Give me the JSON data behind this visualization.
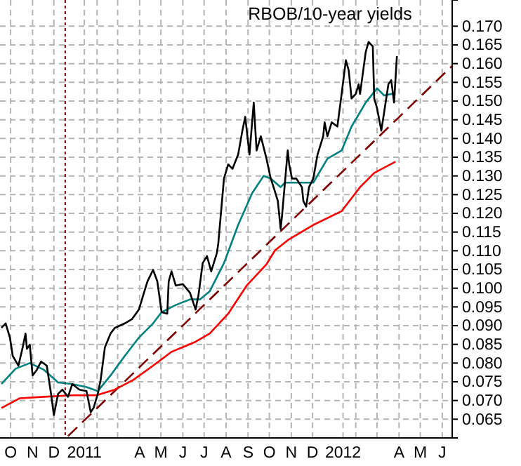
{
  "chart_data": {
    "type": "line",
    "title": "RBOB/10-year yields",
    "xlim": [
      "2010-10-01",
      "2012-06-30"
    ],
    "ylim": [
      0.06,
      0.177
    ],
    "xticks": [
      {
        "value": "2010-10-16",
        "label": "O"
      },
      {
        "value": "2010-11-16",
        "label": "N"
      },
      {
        "value": "2010-12-16",
        "label": "D"
      },
      {
        "value": "2011-01-28",
        "label": "2011"
      },
      {
        "value": "2011-02-15",
        "label": null
      },
      {
        "value": "2011-03-16",
        "label": null
      },
      {
        "value": "2011-04-16",
        "label": "A"
      },
      {
        "value": "2011-05-16",
        "label": "M"
      },
      {
        "value": "2011-06-16",
        "label": "J"
      },
      {
        "value": "2011-07-16",
        "label": "J"
      },
      {
        "value": "2011-08-16",
        "label": "A"
      },
      {
        "value": "2011-09-16",
        "label": "S"
      },
      {
        "value": "2011-10-16",
        "label": "O"
      },
      {
        "value": "2011-11-16",
        "label": "N"
      },
      {
        "value": "2011-12-16",
        "label": "D"
      },
      {
        "value": "2012-01-28",
        "label": "2012"
      },
      {
        "value": "2012-02-15",
        "label": null
      },
      {
        "value": "2012-03-16",
        "label": null
      },
      {
        "value": "2012-04-16",
        "label": "A"
      },
      {
        "value": "2012-05-16",
        "label": "M"
      },
      {
        "value": "2012-06-16",
        "label": "J"
      }
    ],
    "yticks": [
      0.065,
      {
        "value": 0.07,
        "label": "0.070"
      },
      0.075,
      {
        "value": 0.08,
        "label": "0.080"
      },
      0.085,
      {
        "value": 0.09,
        "label": "0.090"
      },
      0.095,
      {
        "value": 0.1,
        "label": "0.100"
      },
      0.105,
      {
        "value": 0.11,
        "label": "0.110"
      },
      0.115,
      {
        "value": 0.12,
        "label": "0.120"
      },
      0.125,
      {
        "value": 0.13,
        "label": "0.130"
      },
      0.135,
      {
        "value": 0.14,
        "label": "0.140"
      },
      0.145,
      {
        "value": 0.15,
        "label": "0.150"
      },
      0.155,
      {
        "value": 0.16,
        "label": "0.160"
      },
      0.165,
      {
        "value": 0.17,
        "label": "0.170"
      }
    ],
    "grid": true,
    "marker": "none",
    "ref_lines": [
      {
        "axis": "x",
        "value": "2011-01-01",
        "label": null,
        "color": "#800000",
        "line_style": "dotted"
      }
    ],
    "series": [
      {
        "color": "#800000",
        "line_style": "dashed",
        "x": [
          "2011-01-05",
          "2012-06-30"
        ],
        "values": [
          0.0605,
          0.1594
        ]
      },
      {
        "color": "#ff0000",
        "x": [
          "2010-10-03",
          "2010-10-29",
          "2010-12-02",
          "2011-01-11",
          "2011-02-14",
          "2011-03-12",
          "2011-04-07",
          "2011-05-05",
          "2011-05-31",
          "2011-07-04",
          "2011-07-24",
          "2011-08-19",
          "2011-09-14",
          "2011-10-12",
          "2011-10-24",
          "2011-11-13",
          "2011-12-17",
          "2012-01-26",
          "2012-02-21",
          "2012-03-12",
          "2012-04-11"
        ],
        "values": [
          0.068,
          0.0706,
          0.071,
          0.0714,
          0.0714,
          0.0729,
          0.0755,
          0.0793,
          0.083,
          0.0857,
          0.0879,
          0.0932,
          0.1007,
          0.1064,
          0.1101,
          0.1131,
          0.1169,
          0.1206,
          0.127,
          0.1308,
          0.1338
        ]
      },
      {
        "color": "#008080",
        "x": [
          "2010-10-03",
          "2010-10-23",
          "2010-11-12",
          "2010-12-02",
          "2010-12-22",
          "2011-01-11",
          "2011-01-31",
          "2011-02-16",
          "2011-03-06",
          "2011-03-26",
          "2011-04-15",
          "2011-05-05",
          "2011-05-17",
          "2011-06-06",
          "2011-06-26",
          "2011-07-10",
          "2011-07-24",
          "2011-08-13",
          "2011-09-02",
          "2011-09-22",
          "2011-10-08",
          "2011-10-18",
          "2011-11-01",
          "2011-11-07",
          "2011-11-21",
          "2011-12-17",
          "2012-01-06",
          "2012-01-26",
          "2012-02-09",
          "2012-02-29",
          "2012-03-16",
          "2012-03-26",
          "2012-04-05",
          "2012-04-11"
        ],
        "values": [
          0.0744,
          0.0785,
          0.08,
          0.0782,
          0.0748,
          0.0744,
          0.0736,
          0.0725,
          0.0767,
          0.0819,
          0.0868,
          0.0906,
          0.0936,
          0.0955,
          0.097,
          0.097,
          0.0992,
          0.1067,
          0.1169,
          0.1255,
          0.13,
          0.1293,
          0.127,
          0.1282,
          0.1282,
          0.1282,
          0.1346,
          0.1368,
          0.1432,
          0.1496,
          0.1534,
          0.1515,
          0.1519,
          0.1519
        ]
      },
      {
        "color": "#000000",
        "x": [
          "2010-10-03",
          "2010-10-09",
          "2010-10-15",
          "2010-10-19",
          "2010-10-27",
          "2010-11-02",
          "2010-11-06",
          "2010-11-08",
          "2010-11-12",
          "2010-11-16",
          "2010-11-22",
          "2010-11-28",
          "2010-12-06",
          "2010-12-12",
          "2010-12-16",
          "2010-12-22",
          "2010-12-28",
          "2011-01-05",
          "2011-01-11",
          "2011-01-21",
          "2011-01-31",
          "2011-02-06",
          "2011-02-10",
          "2011-02-16",
          "2011-02-20",
          "2011-02-26",
          "2011-03-06",
          "2011-03-12",
          "2011-03-26",
          "2011-04-05",
          "2011-04-15",
          "2011-04-21",
          "2011-04-27",
          "2011-05-05",
          "2011-05-11",
          "2011-05-17",
          "2011-05-25",
          "2011-05-27",
          "2011-05-31",
          "2011-06-06",
          "2011-06-16",
          "2011-06-26",
          "2011-07-04",
          "2011-07-08",
          "2011-07-14",
          "2011-07-20",
          "2011-07-26",
          "2011-08-03",
          "2011-08-05",
          "2011-08-13",
          "2011-08-19",
          "2011-08-25",
          "2011-09-02",
          "2011-09-08",
          "2011-09-12",
          "2011-09-18",
          "2011-09-24",
          "2011-09-28",
          "2011-10-04",
          "2011-10-12",
          "2011-10-18",
          "2011-10-22",
          "2011-10-28",
          "2011-11-01",
          "2011-11-03",
          "2011-11-07",
          "2011-11-11",
          "2011-11-13",
          "2011-11-17",
          "2011-11-23",
          "2011-12-01",
          "2011-12-03",
          "2011-12-07",
          "2011-12-11",
          "2011-12-17",
          "2011-12-23",
          "2011-12-31",
          "2012-01-02",
          "2012-01-06",
          "2012-01-12",
          "2012-01-20",
          "2012-01-26",
          "2012-02-01",
          "2012-02-05",
          "2012-02-09",
          "2012-02-15",
          "2012-02-19",
          "2012-02-21",
          "2012-02-29",
          "2012-03-04",
          "2012-03-10",
          "2012-03-12",
          "2012-03-16",
          "2012-03-22",
          "2012-03-26",
          "2012-04-01",
          "2012-04-05",
          "2012-04-09",
          "2012-04-13"
        ],
        "values": [
          0.0894,
          0.0906,
          0.0868,
          0.0819,
          0.0793,
          0.0842,
          0.0879,
          0.0838,
          0.0849,
          0.0767,
          0.0782,
          0.0804,
          0.0793,
          0.0718,
          0.0661,
          0.0718,
          0.0729,
          0.071,
          0.0744,
          0.0729,
          0.0725,
          0.0669,
          0.068,
          0.0718,
          0.0755,
          0.0842,
          0.0879,
          0.0894,
          0.0906,
          0.0917,
          0.0943,
          0.0981,
          0.1018,
          0.1049,
          0.1018,
          0.0936,
          0.0932,
          0.1018,
          0.1045,
          0.1007,
          0.1011,
          0.0988,
          0.0943,
          0.0981,
          0.1067,
          0.1086,
          0.1045,
          0.1094,
          0.112,
          0.1293,
          0.1331,
          0.1319,
          0.1357,
          0.1421,
          0.1458,
          0.1357,
          0.1496,
          0.1368,
          0.1406,
          0.1346,
          0.1293,
          0.127,
          0.1233,
          0.1158,
          0.1195,
          0.1282,
          0.1368,
          0.1331,
          0.1293,
          0.1293,
          0.127,
          0.1233,
          0.1218,
          0.127,
          0.1293,
          0.1357,
          0.1406,
          0.1443,
          0.1406,
          0.1443,
          0.1432,
          0.1519,
          0.1609,
          0.1582,
          0.1507,
          0.1519,
          0.1545,
          0.1519,
          0.1631,
          0.1658,
          0.1646,
          0.1507,
          0.1481,
          0.1421,
          0.147,
          0.1545,
          0.1556,
          0.1496,
          0.162
        ]
      }
    ]
  }
}
